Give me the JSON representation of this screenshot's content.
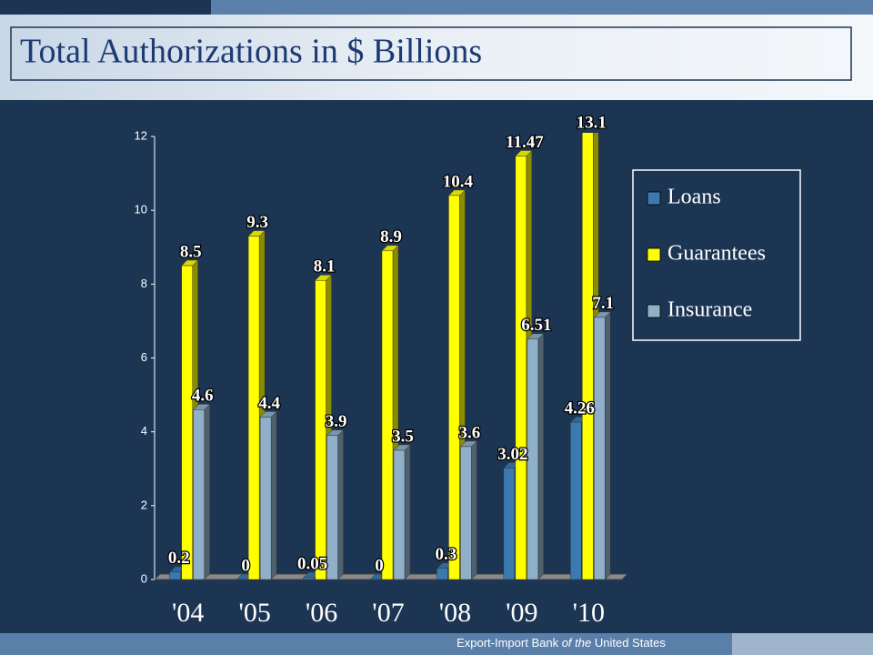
{
  "chart_data": {
    "type": "bar3d",
    "title": "Total Authorizations in $ Billions",
    "footer": [
      "Export-Import Bank ",
      "of the",
      " United States"
    ],
    "categories": [
      "'04",
      "'05",
      "'06",
      "'07",
      "'08",
      "'09",
      "'10"
    ],
    "series": [
      {
        "name": "Loans",
        "color": "#3a7ab0",
        "values": [
          0.2,
          0,
          0.05,
          0,
          0.3,
          3.02,
          4.26
        ]
      },
      {
        "name": "Guarantees",
        "color": "#ffff00",
        "values": [
          8.5,
          9.3,
          8.1,
          8.9,
          10.4,
          11.47,
          13.1
        ]
      },
      {
        "name": "Insurance",
        "color": "#8fb0c8",
        "values": [
          4.6,
          4.4,
          3.9,
          3.5,
          3.6,
          6.51,
          7.1
        ]
      }
    ],
    "ylim": [
      0,
      12
    ],
    "yticks": [
      0,
      2,
      4,
      6,
      8,
      10,
      12
    ],
    "legend": "right"
  }
}
